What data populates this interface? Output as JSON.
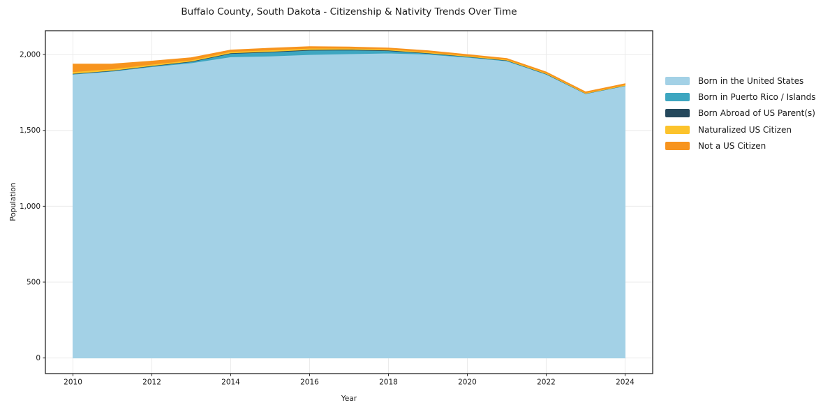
{
  "chart_data": {
    "type": "area",
    "stacked": true,
    "title": "Buffalo County, South Dakota - Citizenship & Nativity Trends Over Time",
    "xlabel": "Year",
    "ylabel": "Population",
    "x": [
      2010,
      2011,
      2012,
      2013,
      2014,
      2015,
      2016,
      2017,
      2018,
      2019,
      2020,
      2021,
      2022,
      2023,
      2024
    ],
    "series": [
      {
        "name": "Born in the United States",
        "color": "#A3D1E6",
        "values": [
          1870,
          1890,
          1920,
          1945,
          1985,
          1990,
          2000,
          2005,
          2010,
          2002,
          1982,
          1958,
          1870,
          1742,
          1794
        ]
      },
      {
        "name": "Born in Puerto Rico / Islands",
        "color": "#3DA6C0",
        "values": [
          3,
          3,
          4,
          8,
          22,
          26,
          28,
          25,
          15,
          6,
          4,
          3,
          2,
          1,
          1
        ]
      },
      {
        "name": "Born Abroad of US Parent(s)",
        "color": "#24485C",
        "values": [
          2,
          3,
          3,
          3,
          4,
          4,
          5,
          5,
          4,
          3,
          2,
          2,
          2,
          1,
          1
        ]
      },
      {
        "name": "Naturalized US Citizen",
        "color": "#FCC32C",
        "values": [
          12,
          10,
          9,
          8,
          9,
          10,
          9,
          7,
          7,
          6,
          5,
          5,
          5,
          4,
          5
        ]
      },
      {
        "name": "Not a US Citizen",
        "color": "#F7941E",
        "values": [
          50,
          32,
          21,
          15,
          10,
          12,
          10,
          8,
          7,
          8,
          7,
          6,
          6,
          6,
          7
        ]
      }
    ],
    "x_ticks": [
      2010,
      2012,
      2014,
      2016,
      2018,
      2020,
      2022,
      2024
    ],
    "x_tick_labels": [
      "2010",
      "2012",
      "2014",
      "2016",
      "2018",
      "2020",
      "2022",
      "2024"
    ],
    "y_ticks": [
      0,
      500,
      1000,
      1500,
      2000
    ],
    "y_tick_labels": [
      "0",
      "500",
      "1,000",
      "1,500",
      "2,000"
    ],
    "xlim": [
      2009.3,
      2024.7
    ],
    "ylim": [
      -103,
      2157
    ],
    "grid": true,
    "grid_color": "#EBEBEB",
    "border_color": "#262626",
    "background_color": "#FFFFFF",
    "legend_position": "right"
  }
}
